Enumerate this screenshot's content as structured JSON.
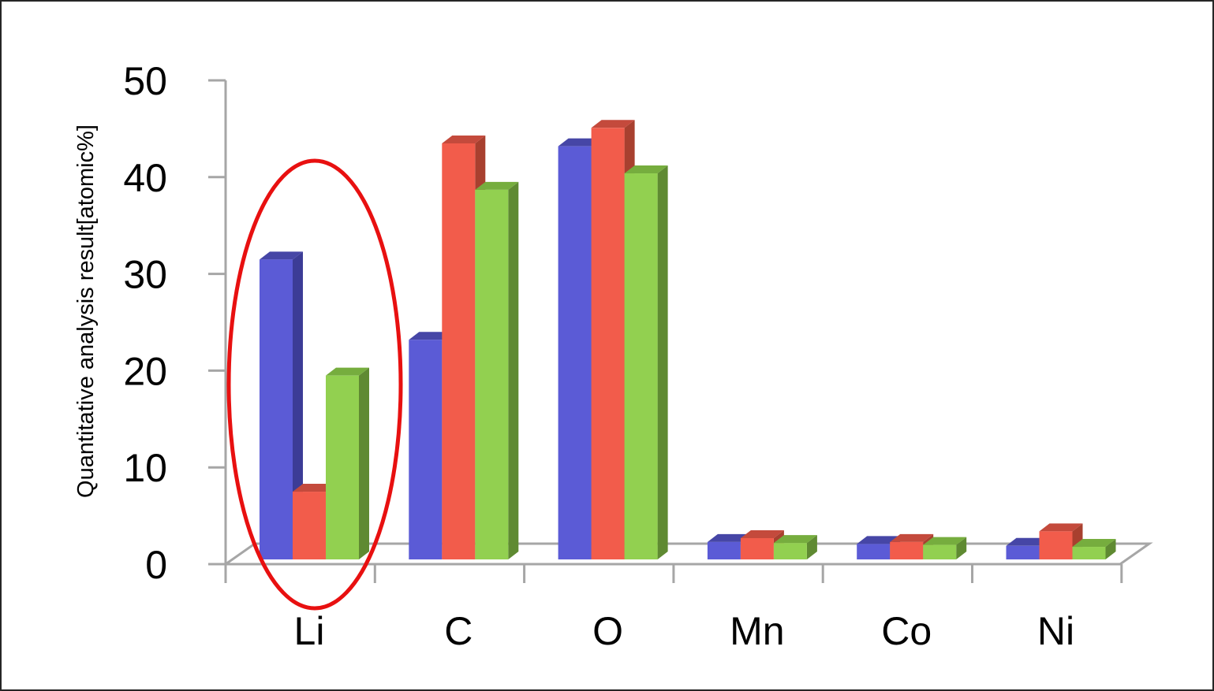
{
  "chart_data": {
    "type": "bar",
    "title": "",
    "xlabel": "",
    "ylabel": "Quantitative analysis  result[atomic%]",
    "ylim": [
      0,
      50
    ],
    "yticks": [
      0,
      10,
      20,
      30,
      40,
      50
    ],
    "categories": [
      "Li",
      "C",
      "O",
      "Mn",
      "Co",
      "Ni"
    ],
    "series": [
      {
        "values": [
          31,
          22.7,
          42.7,
          1.8,
          1.6,
          1.4
        ]
      },
      {
        "values": [
          7,
          43,
          44.6,
          2.2,
          1.8,
          2.9
        ]
      },
      {
        "values": [
          19,
          38.2,
          39.9,
          1.7,
          1.5,
          1.3
        ]
      }
    ],
    "highlighted_category": "Li",
    "grid": false,
    "legend": "none",
    "three_d": true
  },
  "colors": {
    "series": [
      {
        "front": "#5b5bd6",
        "side": "#3c3c96",
        "top": "#4646a6"
      },
      {
        "front": "#f25c4b",
        "side": "#a8402f",
        "top": "#c44a3c"
      },
      {
        "front": "#92d050",
        "side": "#5f8a32",
        "top": "#76ad3e"
      }
    ],
    "axis": "#a6a6a6",
    "highlight": "#e81010"
  }
}
